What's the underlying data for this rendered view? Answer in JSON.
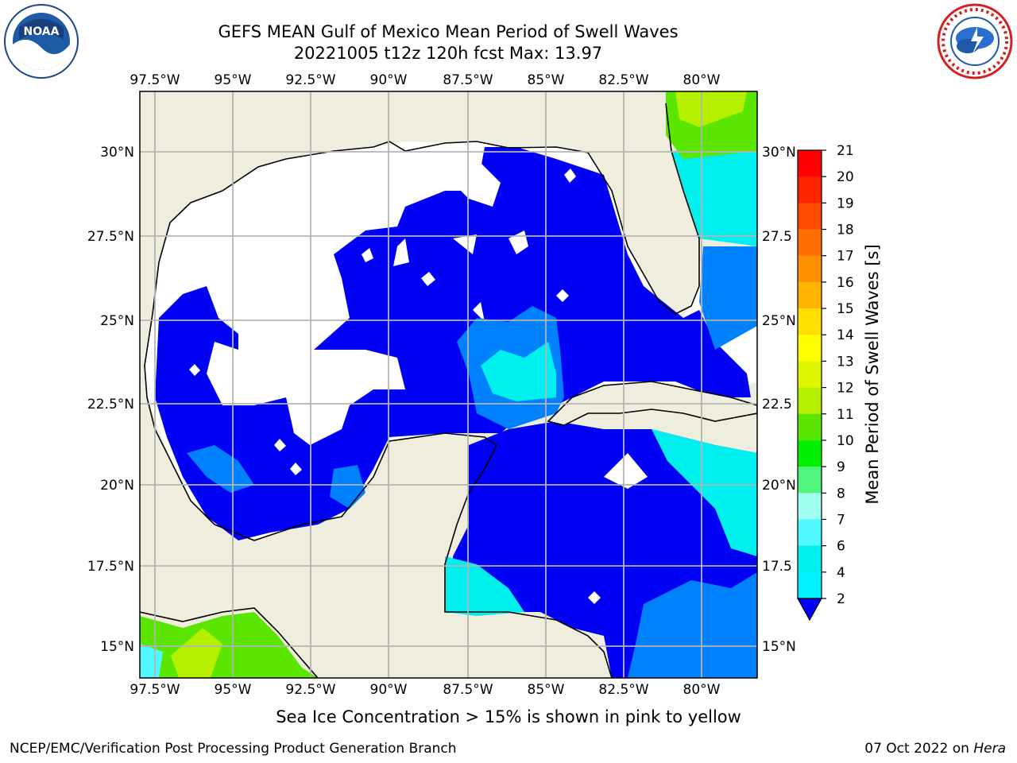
{
  "title": {
    "line1": "GEFS MEAN Gulf of Mexico Mean Period of Swell Waves",
    "line2": "20221005 t12z 120h fcst   Max: 13.97"
  },
  "map": {
    "lon_ticks": [
      "97.5°W",
      "95°W",
      "92.5°W",
      "90°W",
      "87.5°W",
      "85°W",
      "82.5°W",
      "80°W"
    ],
    "lat_ticks_left": [
      "30°N",
      "27.5°N",
      "25°N",
      "22.5°N",
      "20°N",
      "17.5°N",
      "15°N"
    ],
    "lat_ticks_right": [
      "30°N",
      "27.5",
      "25°N",
      "22.5",
      "20°N",
      "17.5",
      "15°N"
    ],
    "colors": {
      "land": "#efedde",
      "ocean_low": "#0000f5",
      "grid": "#b4b4b4"
    }
  },
  "colorbar": {
    "label": "Mean Period of Swell Waves [s]",
    "ticks": [
      "21",
      "20",
      "19",
      "18",
      "17",
      "16",
      "15",
      "14",
      "13",
      "12",
      "11",
      "10",
      "9",
      "8",
      "7",
      "6",
      "4",
      "2"
    ],
    "colors": [
      "#ff0000",
      "#ff2400",
      "#ff4a00",
      "#ff6e00",
      "#ff9000",
      "#ffb400",
      "#ffe000",
      "#ffff00",
      "#ddf700",
      "#b4f000",
      "#5ae600",
      "#00f000",
      "#50f57e",
      "#a0fff0",
      "#50f8ff",
      "#00f0f0",
      "#00f0ff",
      "#0082ff",
      "#0000ff"
    ]
  },
  "caption": "Sea Ice Concentration > 15% is shown in pink to yellow",
  "footer": {
    "left": "NCEP/EMC/Verification Post Processing Product Generation Branch",
    "date": "07 Oct 2022 on ",
    "system": "Hera"
  },
  "logos": {
    "left": "noaa-logo",
    "right": "nws-logo"
  }
}
